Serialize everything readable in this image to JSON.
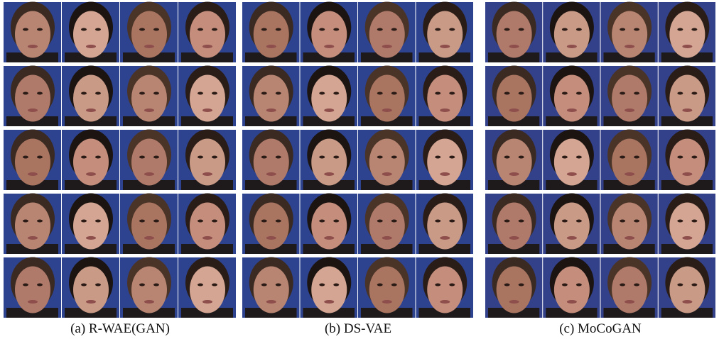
{
  "panels": [
    {
      "caption": "(a) R-WAE(GAN)"
    },
    {
      "caption": "(b) DS-VAE"
    },
    {
      "caption": "(c) MoCoGAN"
    }
  ]
}
